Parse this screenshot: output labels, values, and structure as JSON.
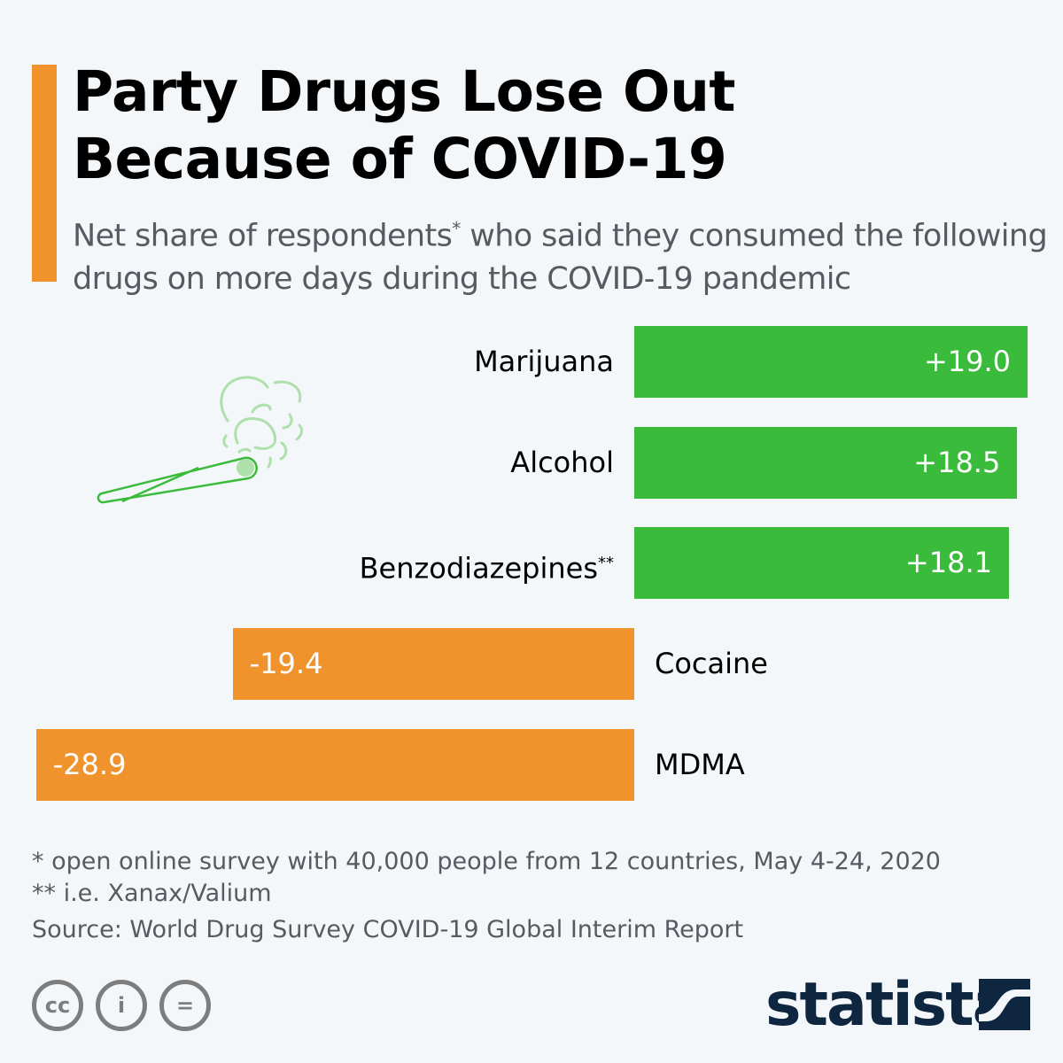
{
  "title_line1": "Party Drugs Lose Out",
  "title_line2": "Because of COVID-19",
  "subtitle_a": "Net share of respondents",
  "subtitle_star": "*",
  "subtitle_b": " who said they consumed the following drugs on more days during the COVID-19 pandemic",
  "chart_data": {
    "type": "bar",
    "orientation": "horizontal",
    "categories": [
      "Marijuana",
      "Alcohol",
      "Benzodiazepines**",
      "Cocaine",
      "MDMA"
    ],
    "values": [
      19.0,
      18.5,
      18.1,
      -19.4,
      -28.9
    ],
    "value_labels": [
      "+19.0",
      "+18.5",
      "+18.1",
      "-19.4",
      "-28.9"
    ],
    "colors": {
      "positive": "#3bbb3b",
      "negative": "#f0932c"
    },
    "xlim": [
      -28.9,
      19.0
    ]
  },
  "notes": [
    "*   open online survey with 40,000 people from 12 countries, May 4-24, 2020",
    "** i.e. Xanax/Valium"
  ],
  "source": "Source: World Drug Survey COVID-19 Global Interim Report",
  "license": {
    "cc": "cc",
    "by": "i",
    "nd": "="
  },
  "logo": "statista"
}
